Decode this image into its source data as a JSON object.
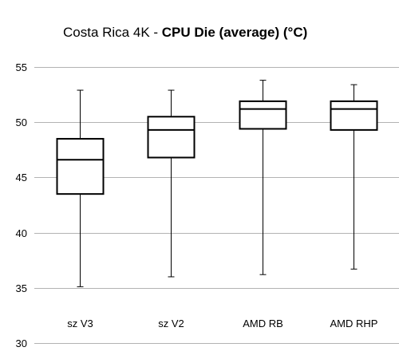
{
  "chart_data": {
    "type": "boxplot",
    "title_prefix": "Costa Rica 4K - ",
    "title_bold": "CPU Die (average) (°C)",
    "ylim": [
      30,
      55
    ],
    "yticks": [
      30,
      35,
      40,
      45,
      50,
      55
    ],
    "ytick_labels": [
      "30",
      "35",
      "40",
      "45",
      "50",
      "55"
    ],
    "grid": true,
    "categories": [
      "sz V3",
      "sz V2",
      "AMD RB",
      "AMD RHP"
    ],
    "series": [
      {
        "category": "sz V3",
        "min": 35.1,
        "q1": 43.5,
        "median": 46.6,
        "q3": 48.5,
        "max": 52.9
      },
      {
        "category": "sz V2",
        "min": 36.0,
        "q1": 46.8,
        "median": 49.3,
        "q3": 50.5,
        "max": 52.9
      },
      {
        "category": "AMD RB",
        "min": 36.2,
        "q1": 49.4,
        "median": 51.2,
        "q3": 51.9,
        "max": 53.8
      },
      {
        "category": "AMD RHP",
        "min": 36.7,
        "q1": 49.3,
        "median": 51.2,
        "q3": 51.9,
        "max": 53.4
      }
    ]
  }
}
